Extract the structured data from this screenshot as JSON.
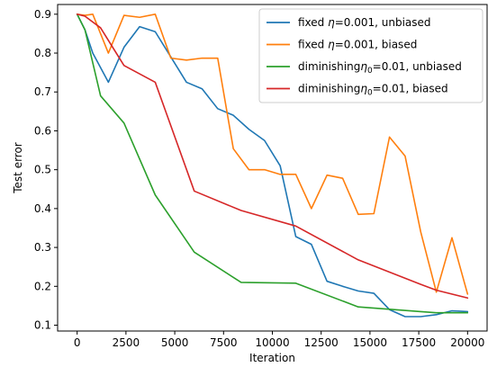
{
  "chart_data": {
    "type": "line",
    "xlabel": "Iteration",
    "ylabel": "Test error",
    "xlim": [
      -1000,
      21000
    ],
    "ylim": [
      0.085,
      0.925
    ],
    "xticks": [
      0,
      2500,
      5000,
      7500,
      10000,
      12500,
      15000,
      17500,
      20000
    ],
    "yticks": [
      0.1,
      0.2,
      0.3,
      0.4,
      0.5,
      0.6,
      0.7,
      0.8,
      0.9
    ],
    "grid": false,
    "legend_position": "top-right",
    "series": [
      {
        "name": "fixed η=0.001, unbiased",
        "legend_parts": [
          "fixed ",
          "η",
          "=0.001, unbiased"
        ],
        "color": "#1f77b4",
        "x": [
          0,
          400,
          800,
          1600,
          2400,
          3200,
          4000,
          4800,
          5600,
          6400,
          7200,
          8000,
          8800,
          9600,
          10400,
          11200,
          12000,
          12800,
          13600,
          14400,
          15200,
          16000,
          16800,
          17600,
          18400,
          19200,
          20000
        ],
        "y": [
          0.9,
          0.86,
          0.8,
          0.725,
          0.815,
          0.868,
          0.855,
          0.79,
          0.725,
          0.708,
          0.657,
          0.64,
          0.604,
          0.575,
          0.51,
          0.328,
          0.308,
          0.213,
          0.2,
          0.188,
          0.182,
          0.14,
          0.122,
          0.122,
          0.127,
          0.137,
          0.135
        ]
      },
      {
        "name": "fixed η=0.001, biased",
        "legend_parts": [
          "fixed ",
          "η",
          "=0.001, biased"
        ],
        "color": "#ff7f0e",
        "x": [
          0,
          400,
          800,
          1600,
          2400,
          3200,
          4000,
          4800,
          5600,
          6400,
          7200,
          8000,
          8800,
          9600,
          10400,
          11200,
          12000,
          12800,
          13600,
          14400,
          15200,
          16000,
          16800,
          17600,
          18400,
          19200,
          20000
        ],
        "y": [
          0.9,
          0.897,
          0.9,
          0.8,
          0.897,
          0.892,
          0.9,
          0.787,
          0.782,
          0.787,
          0.787,
          0.554,
          0.5,
          0.5,
          0.488,
          0.488,
          0.4,
          0.486,
          0.478,
          0.385,
          0.387,
          0.584,
          0.535,
          0.34,
          0.185,
          0.325,
          0.18
        ]
      },
      {
        "name": "diminishing η₀=0.01, unbiased",
        "legend_parts": [
          "diminishing",
          "η",
          "0",
          "=0.01, unbiased"
        ],
        "color": "#2ca02c",
        "x": [
          0,
          400,
          1200,
          2400,
          4000,
          6000,
          8400,
          11200,
          14400,
          17600,
          18400,
          20000
        ],
        "y": [
          0.9,
          0.86,
          0.69,
          0.62,
          0.435,
          0.288,
          0.21,
          0.208,
          0.147,
          0.135,
          0.132,
          0.132
        ]
      },
      {
        "name": "diminishing η₀=0.01, biased",
        "legend_parts": [
          "diminishing",
          "η",
          "0",
          "=0.01, biased"
        ],
        "color": "#d62728",
        "x": [
          0,
          400,
          1200,
          2400,
          4000,
          6000,
          8400,
          11200,
          14400,
          17600,
          18400,
          20000
        ],
        "y": [
          0.9,
          0.895,
          0.865,
          0.768,
          0.725,
          0.445,
          0.395,
          0.355,
          0.268,
          0.205,
          0.19,
          0.17
        ]
      }
    ]
  }
}
